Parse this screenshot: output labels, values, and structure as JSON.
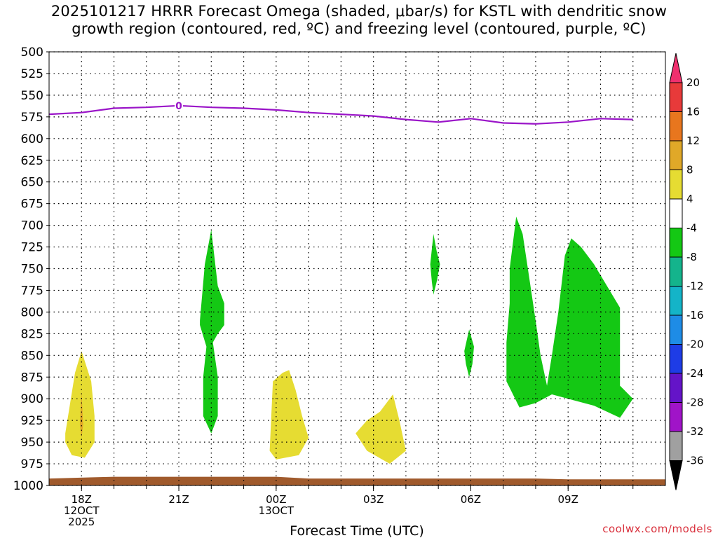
{
  "chart_data": {
    "type": "heatmap",
    "title_lines": [
      "2025101217 HRRR Forecast Omega (shaded, μbar/s) for KSTL with dendritic snow",
      "growth region (contoured, red, ºC) and freezing level (contoured, purple, ºC)"
    ],
    "xlabel": "Forecast Time (UTC)",
    "ylabel": "",
    "y_axis": {
      "unit": "hPa",
      "range": [
        1000,
        500
      ],
      "ticks": [
        "500",
        "525",
        "550",
        "575",
        "600",
        "625",
        "650",
        "675",
        "700",
        "725",
        "750",
        "775",
        "800",
        "825",
        "850",
        "875",
        "900",
        "925",
        "950",
        "975",
        "1000"
      ]
    },
    "x_axis": {
      "unit": "hours after 2025-10-12 17Z",
      "range": [
        0,
        19
      ],
      "ticks": [
        {
          "hour": 1,
          "lines": [
            "18Z",
            "12OCT",
            "2025"
          ]
        },
        {
          "hour": 4,
          "lines": [
            "21Z"
          ]
        },
        {
          "hour": 7,
          "lines": [
            "00Z",
            "13OCT"
          ]
        },
        {
          "hour": 10,
          "lines": [
            "03Z"
          ]
        },
        {
          "hour": 13,
          "lines": [
            "06Z"
          ]
        },
        {
          "hour": 16,
          "lines": [
            "09Z"
          ]
        }
      ]
    },
    "colorbar": {
      "labels": [
        "20",
        "16",
        "12",
        "8",
        "4",
        "-4",
        "-8",
        "-12",
        "-16",
        "-20",
        "-24",
        "-28",
        "-32",
        "-36"
      ],
      "colors": [
        "#f0306e",
        "#e83a3a",
        "#e8761e",
        "#e0a828",
        "#e6dc32",
        "#ffffff",
        "#14c814",
        "#14b48c",
        "#14b4c8",
        "#1e8ce6",
        "#1e3ce6",
        "#6414c8",
        "#a014c8",
        "#a0a0a0",
        "#000000"
      ]
    },
    "freezing_level": {
      "label": "0",
      "points": [
        [
          0,
          572
        ],
        [
          1,
          570
        ],
        [
          2,
          565
        ],
        [
          3,
          564
        ],
        [
          4,
          562
        ],
        [
          5,
          564
        ],
        [
          6,
          565
        ],
        [
          7,
          567
        ],
        [
          8,
          570
        ],
        [
          9,
          572
        ],
        [
          10,
          574
        ],
        [
          11,
          578
        ],
        [
          12,
          581
        ],
        [
          13,
          577
        ],
        [
          14,
          582
        ],
        [
          15,
          583
        ],
        [
          16,
          581
        ],
        [
          17,
          577
        ],
        [
          18,
          578
        ]
      ]
    },
    "ground": {
      "color": "#a05a2c",
      "points": [
        [
          0,
          992
        ],
        [
          2,
          990
        ],
        [
          5,
          990
        ],
        [
          7,
          990
        ],
        [
          8,
          992
        ],
        [
          12,
          992
        ],
        [
          15,
          992
        ],
        [
          16,
          993
        ],
        [
          19,
          993
        ]
      ]
    },
    "regions": [
      {
        "name": "rise-18z",
        "color": "#e6dc32",
        "points": [
          [
            0.5,
            940
          ],
          [
            0.8,
            870
          ],
          [
            1.0,
            845
          ],
          [
            1.3,
            880
          ],
          [
            1.4,
            920
          ],
          [
            1.4,
            950
          ],
          [
            1.1,
            968
          ],
          [
            0.7,
            965
          ],
          [
            0.5,
            950
          ]
        ]
      },
      {
        "name": "rise-18z-core",
        "color": "#e0a828",
        "points": [
          [
            0.95,
            930
          ],
          [
            1.0,
            892
          ],
          [
            1.05,
            930
          ],
          [
            1.0,
            945
          ]
        ]
      },
      {
        "name": "sink-22z",
        "color": "#14c814",
        "points": [
          [
            4.65,
            810
          ],
          [
            4.8,
            745
          ],
          [
            5.0,
            705
          ],
          [
            5.2,
            770
          ],
          [
            5.4,
            790
          ],
          [
            5.4,
            815
          ],
          [
            5.2,
            825
          ],
          [
            5.05,
            835
          ],
          [
            5.2,
            875
          ],
          [
            5.2,
            920
          ],
          [
            5.0,
            940
          ],
          [
            4.75,
            920
          ],
          [
            4.75,
            875
          ],
          [
            4.85,
            840
          ],
          [
            4.65,
            815
          ]
        ]
      },
      {
        "name": "rise-00z",
        "color": "#e6dc32",
        "points": [
          [
            6.9,
            880
          ],
          [
            7.2,
            870
          ],
          [
            7.4,
            867
          ],
          [
            7.6,
            890
          ],
          [
            7.8,
            920
          ],
          [
            8.0,
            945
          ],
          [
            7.7,
            965
          ],
          [
            7.0,
            970
          ],
          [
            6.8,
            960
          ],
          [
            6.85,
            920
          ]
        ]
      },
      {
        "name": "rise-03z",
        "color": "#e6dc32",
        "points": [
          [
            9.45,
            940
          ],
          [
            9.8,
            925
          ],
          [
            10.2,
            915
          ],
          [
            10.6,
            895
          ],
          [
            10.8,
            925
          ],
          [
            11.0,
            960
          ],
          [
            10.5,
            975
          ],
          [
            9.8,
            960
          ]
        ]
      },
      {
        "name": "sink-04z",
        "color": "#14c814",
        "points": [
          [
            11.75,
            745
          ],
          [
            11.85,
            710
          ],
          [
            11.95,
            730
          ],
          [
            12.05,
            745
          ],
          [
            11.95,
            765
          ],
          [
            11.85,
            780
          ],
          [
            11.8,
            765
          ]
        ]
      },
      {
        "name": "sink-05z",
        "color": "#14c814",
        "points": [
          [
            12.8,
            845
          ],
          [
            12.95,
            820
          ],
          [
            13.1,
            840
          ],
          [
            13.05,
            860
          ],
          [
            12.95,
            875
          ],
          [
            12.85,
            860
          ]
        ]
      },
      {
        "name": "sink-07z-10z",
        "color": "#14c814",
        "points": [
          [
            14.2,
            750
          ],
          [
            14.4,
            690
          ],
          [
            14.6,
            710
          ],
          [
            14.8,
            760
          ],
          [
            15.0,
            810
          ],
          [
            15.15,
            850
          ],
          [
            15.35,
            885
          ],
          [
            15.5,
            850
          ],
          [
            15.7,
            800
          ],
          [
            15.9,
            735
          ],
          [
            16.1,
            715
          ],
          [
            16.4,
            725
          ],
          [
            16.8,
            745
          ],
          [
            17.2,
            770
          ],
          [
            17.6,
            795
          ],
          [
            17.6,
            840
          ],
          [
            17.6,
            885
          ],
          [
            18,
            900
          ],
          [
            17.6,
            922
          ],
          [
            17.2,
            915
          ],
          [
            16.8,
            908
          ],
          [
            16.2,
            902
          ],
          [
            15.5,
            895
          ],
          [
            15.0,
            905
          ],
          [
            14.5,
            910
          ],
          [
            14.1,
            880
          ],
          [
            14.1,
            835
          ],
          [
            14.2,
            790
          ]
        ]
      }
    ]
  },
  "watermark": "coolwx.com/models"
}
